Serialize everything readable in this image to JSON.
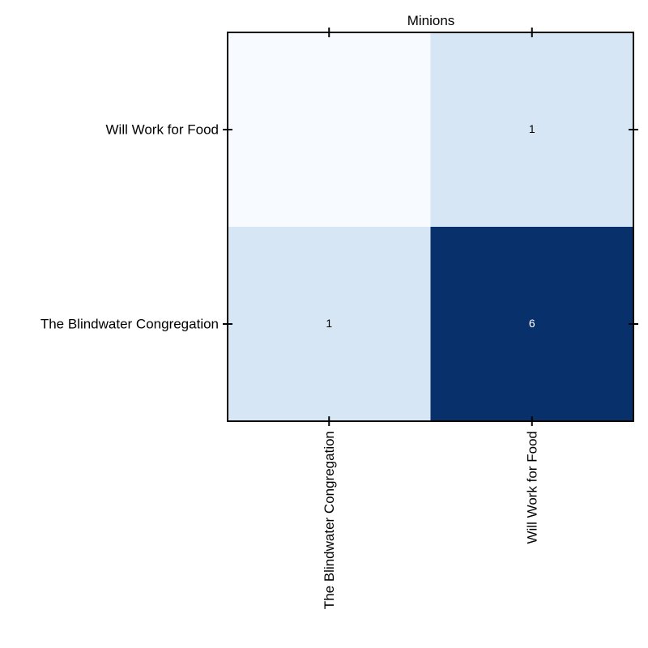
{
  "chart_data": {
    "type": "heatmap",
    "title": "Minions",
    "x_categories": [
      "The Blindwater Congregation",
      "Will Work for Food"
    ],
    "y_categories": [
      "Will Work for Food",
      "The Blindwater Congregation"
    ],
    "values": [
      [
        0,
        1
      ],
      [
        1,
        6
      ]
    ],
    "cell_labels": [
      [
        "",
        "1"
      ],
      [
        "1",
        "6"
      ]
    ],
    "colormap": "Blues",
    "value_range": [
      0,
      6
    ],
    "colors": {
      "low": "#f7fbff",
      "mid_low": "#d6e6f4",
      "high": "#08306b",
      "text_on_light": "#000000",
      "text_on_dark": "#ffffff"
    },
    "xlabel": "",
    "ylabel": "",
    "grid": false,
    "legend": "none"
  }
}
